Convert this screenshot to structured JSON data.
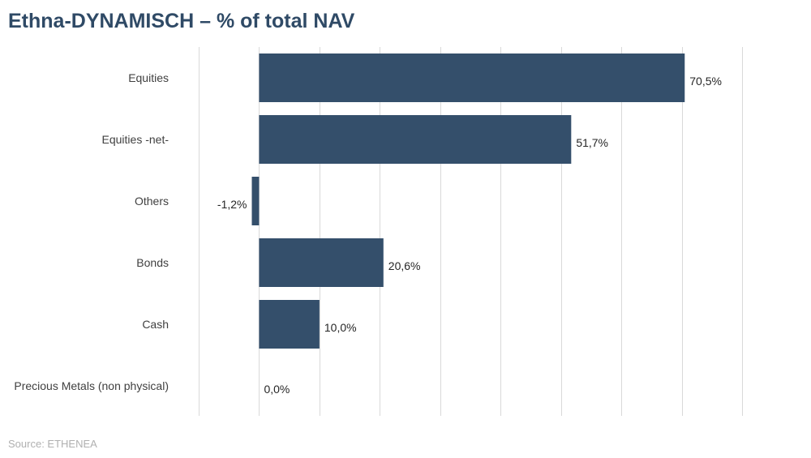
{
  "title": "Ethna-DYNAMISCH – % of total NAV",
  "source": "Source: ETHENEA",
  "chart_data": {
    "type": "bar",
    "orientation": "horizontal",
    "categories": [
      "Equities",
      "Equities -net-",
      "Others",
      "Bonds",
      "Cash",
      "Precious Metals (non physical)"
    ],
    "values": [
      70.5,
      51.7,
      -1.2,
      20.6,
      10.0,
      0.0
    ],
    "value_labels": [
      "70,5%",
      "51,7%",
      "-1,2%",
      "20,6%",
      "10,0%",
      "0,0%"
    ],
    "xlim": [
      -10,
      80
    ],
    "grid": true,
    "colors": {
      "bar": "#344f6b"
    }
  }
}
